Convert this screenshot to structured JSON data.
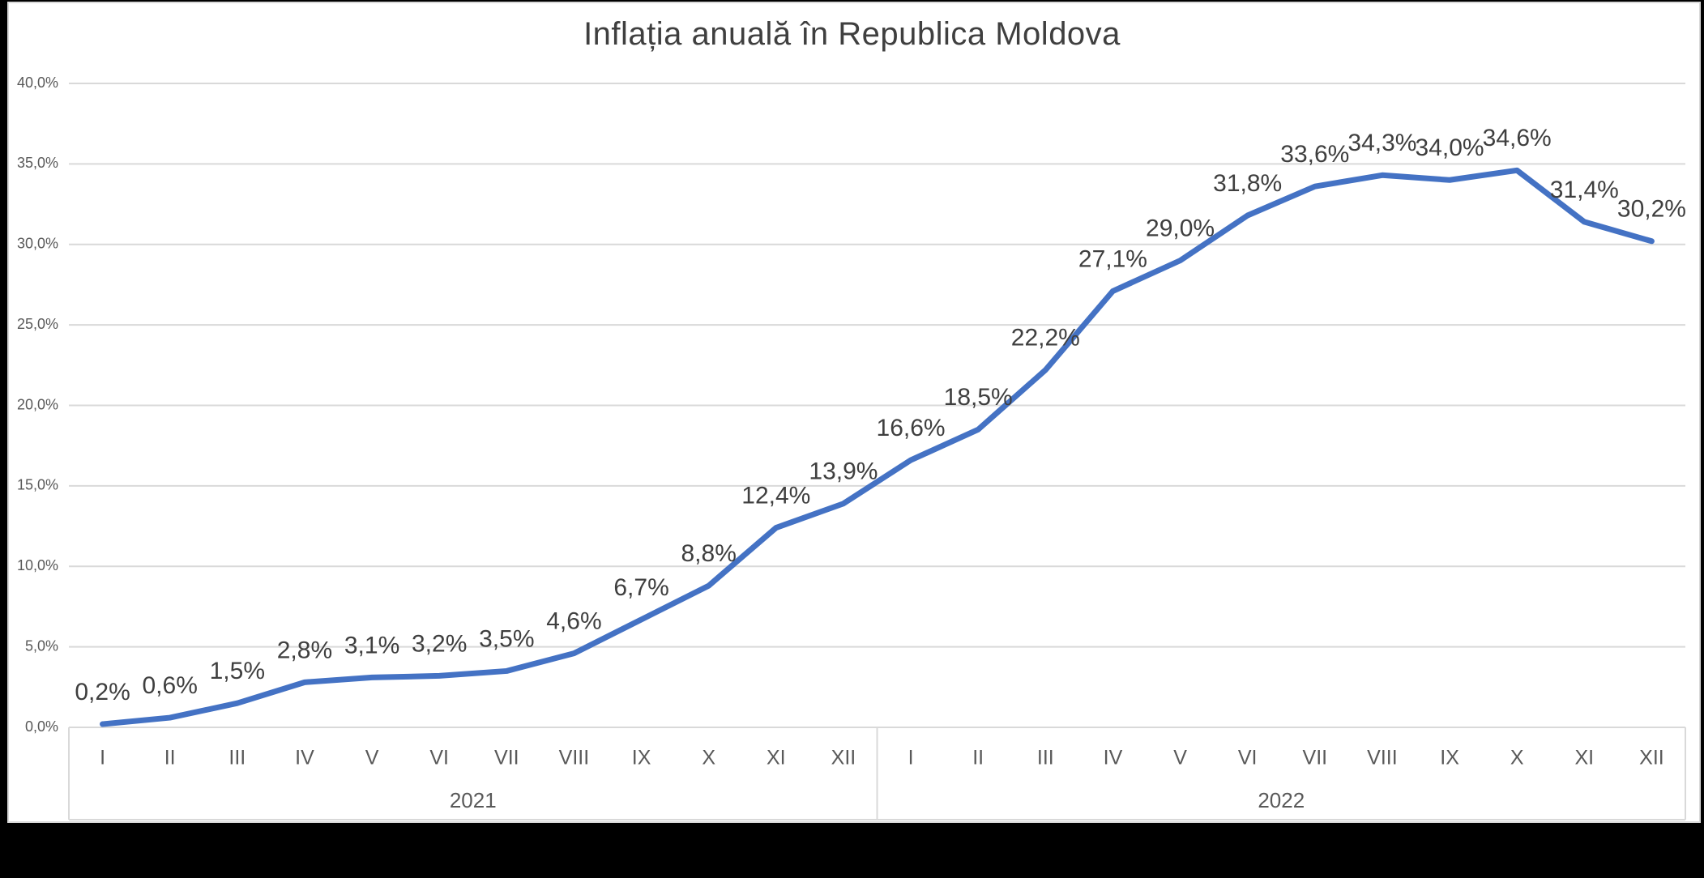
{
  "title": "Inflația anuală în Republica Moldova",
  "colors": {
    "line": "#4472C4",
    "gridline": "#D9D9D9",
    "band_border": "#D9D9D9",
    "axis_text": "#595959",
    "data_label_text": "#3F3F3F",
    "title_text": "#3F3F3F",
    "plot_background": "#FFFFFF",
    "outer_background": "#000000"
  },
  "chart_data": {
    "type": "line",
    "title": "Inflația anuală în Republica Moldova",
    "categories": [
      "I",
      "II",
      "III",
      "IV",
      "V",
      "VI",
      "VII",
      "VIII",
      "IX",
      "X",
      "XI",
      "XII",
      "I",
      "II",
      "III",
      "IV",
      "V",
      "VI",
      "VII",
      "VIII",
      "IX",
      "X",
      "XI",
      "XII"
    ],
    "group_labels": [
      "2021",
      "2022"
    ],
    "group_size": 12,
    "values": [
      0.2,
      0.6,
      1.5,
      2.8,
      3.1,
      3.2,
      3.5,
      4.6,
      6.7,
      8.8,
      12.4,
      13.9,
      16.6,
      18.5,
      22.2,
      27.1,
      29.0,
      31.8,
      33.6,
      34.3,
      34.0,
      34.6,
      31.4,
      30.2
    ],
    "point_labels": [
      "0,2%",
      "0,6%",
      "1,5%",
      "2,8%",
      "3,1%",
      "3,2%",
      "3,5%",
      "4,6%",
      "6,7%",
      "8,8%",
      "12,4%",
      "13,9%",
      "16,6%",
      "18,5%",
      "22,2%",
      "27,1%",
      "29,0%",
      "31,8%",
      "33,6%",
      "34,3%",
      "34,0%",
      "34,6%",
      "31,4%",
      "30,2%"
    ],
    "y_tick_values": [
      0,
      5,
      10,
      15,
      20,
      25,
      30,
      35,
      40
    ],
    "y_tick_labels": [
      "0,0%",
      "5,0%",
      "10,0%",
      "15,0%",
      "20,0%",
      "25,0%",
      "30,0%",
      "35,0%",
      "40,0%"
    ],
    "ylim": [
      0,
      40
    ],
    "grid": true,
    "legend": "none"
  }
}
